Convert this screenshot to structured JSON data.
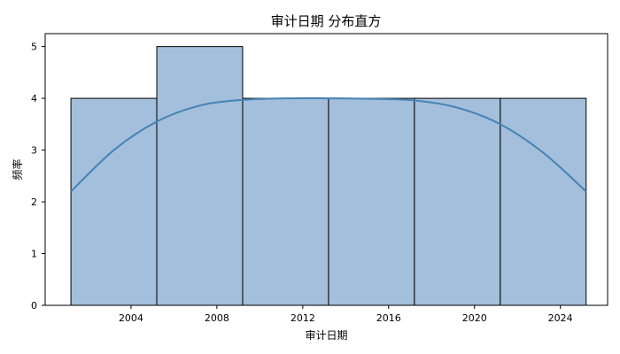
{
  "chart_data": {
    "type": "histogram",
    "title": "审计日期 分布直方",
    "xlabel": "审计日期",
    "ylabel": "频率",
    "xlim": [
      2000.0,
      2026.2
    ],
    "ylim": [
      0,
      5.25
    ],
    "x_ticks": [
      2004,
      2008,
      2012,
      2016,
      2020,
      2024
    ],
    "y_ticks": [
      0,
      1,
      2,
      3,
      4,
      5
    ],
    "bins": [
      {
        "start": 2001.2,
        "end": 2005.2,
        "count": 4
      },
      {
        "start": 2005.2,
        "end": 2009.2,
        "count": 5
      },
      {
        "start": 2009.2,
        "end": 2013.2,
        "count": 4
      },
      {
        "start": 2013.2,
        "end": 2017.2,
        "count": 4
      },
      {
        "start": 2017.2,
        "end": 2021.2,
        "count": 4
      },
      {
        "start": 2021.2,
        "end": 2025.2,
        "count": 4
      }
    ],
    "kde": {
      "x": [
        2001.2,
        2003.2,
        2005.2,
        2007.2,
        2009.2,
        2011.2,
        2013.2,
        2015.2,
        2017.2,
        2019.2,
        2021.2,
        2023.2,
        2025.2
      ],
      "y": [
        2.2,
        3.0,
        3.55,
        3.86,
        3.97,
        4.0,
        4.0,
        3.99,
        3.96,
        3.82,
        3.5,
        2.95,
        2.2
      ]
    },
    "bar_color": "#a3bfdb",
    "bar_edge_color": "#000000",
    "kde_color": "#4682b4",
    "grid": false,
    "legend": "none"
  }
}
